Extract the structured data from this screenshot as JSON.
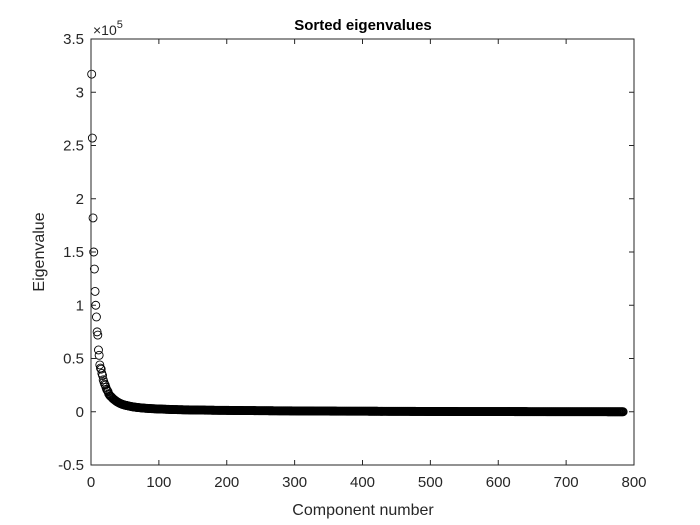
{
  "chart_data": {
    "type": "scatter",
    "title": "Sorted eigenvalues",
    "xlabel": "Component number",
    "ylabel": "Eigenvalue",
    "xlim": [
      0,
      800
    ],
    "ylim": [
      -0.5,
      3.5
    ],
    "y_multiplier_base": "×10",
    "y_multiplier_exponent": "5",
    "x_ticks": [
      "0",
      "100",
      "200",
      "300",
      "400",
      "500",
      "600",
      "700",
      "800"
    ],
    "y_ticks": [
      "-0.5",
      "0",
      "0.5",
      "1",
      "1.5",
      "2",
      "2.5",
      "3",
      "3.5"
    ],
    "grid": false,
    "marker": "open-circle",
    "marker_color": "#000000",
    "axis_color": "#262626",
    "components_shown": 784,
    "points": [
      [
        1,
        3.17
      ],
      [
        2,
        2.57
      ],
      [
        3,
        1.82
      ],
      [
        4,
        1.5
      ],
      [
        5,
        1.34
      ],
      [
        6,
        1.13
      ],
      [
        7,
        1.0
      ],
      [
        8,
        0.89
      ],
      [
        9,
        0.75
      ],
      [
        10,
        0.72
      ],
      [
        11,
        0.58
      ],
      [
        12,
        0.53
      ],
      [
        13,
        0.44
      ],
      [
        14,
        0.41
      ],
      [
        15,
        0.4
      ],
      [
        16,
        0.36
      ],
      [
        17,
        0.34
      ],
      [
        18,
        0.3
      ],
      [
        19,
        0.28
      ],
      [
        20,
        0.26
      ],
      [
        21,
        0.25
      ],
      [
        22,
        0.23
      ],
      [
        23,
        0.21
      ],
      [
        24,
        0.2
      ],
      [
        25,
        0.19
      ],
      [
        26,
        0.17
      ],
      [
        27,
        0.16
      ],
      [
        28,
        0.15
      ],
      [
        29,
        0.145
      ],
      [
        30,
        0.14
      ],
      [
        32,
        0.125
      ],
      [
        34,
        0.115
      ],
      [
        36,
        0.105
      ],
      [
        38,
        0.095
      ],
      [
        40,
        0.088
      ],
      [
        43,
        0.078
      ],
      [
        46,
        0.07
      ],
      [
        50,
        0.062
      ],
      [
        55,
        0.055
      ],
      [
        60,
        0.048
      ],
      [
        65,
        0.043
      ],
      [
        70,
        0.039
      ],
      [
        80,
        0.033
      ],
      [
        90,
        0.029
      ],
      [
        100,
        0.026
      ],
      [
        120,
        0.021
      ],
      [
        140,
        0.018
      ],
      [
        160,
        0.016
      ],
      [
        180,
        0.014
      ],
      [
        200,
        0.013
      ],
      [
        250,
        0.01
      ],
      [
        300,
        0.008
      ],
      [
        350,
        0.006
      ],
      [
        400,
        0.005
      ],
      [
        450,
        0.004
      ],
      [
        500,
        0.003
      ],
      [
        550,
        0.002
      ],
      [
        600,
        0.0015
      ],
      [
        650,
        0.001
      ],
      [
        700,
        0.0005
      ],
      [
        750,
        0.0002
      ],
      [
        784,
        0.0
      ]
    ]
  }
}
